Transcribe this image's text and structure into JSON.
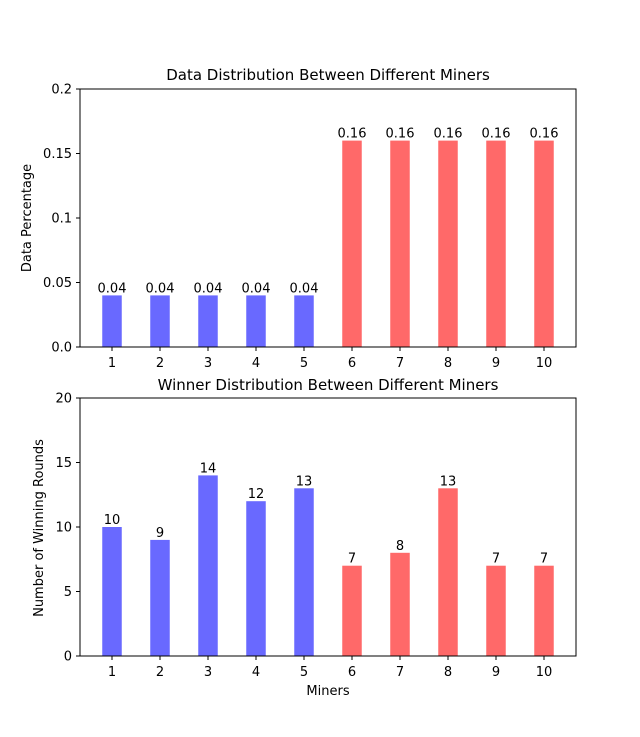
{
  "colors": {
    "group_a": "#6969ff",
    "group_b": "#ff6969"
  },
  "chart_data": [
    {
      "type": "bar",
      "title": "Data Distribution Between Different Miners",
      "xlabel": "",
      "ylabel": "Data Percentage",
      "categories": [
        "1",
        "2",
        "3",
        "4",
        "5",
        "6",
        "7",
        "8",
        "9",
        "10"
      ],
      "values": [
        0.04,
        0.04,
        0.04,
        0.04,
        0.04,
        0.16,
        0.16,
        0.16,
        0.16,
        0.16
      ],
      "value_labels": [
        "0.04",
        "0.04",
        "0.04",
        "0.04",
        "0.04",
        "0.16",
        "0.16",
        "0.16",
        "0.16",
        "0.16"
      ],
      "bar_groups": [
        "a",
        "a",
        "a",
        "a",
        "a",
        "b",
        "b",
        "b",
        "b",
        "b"
      ],
      "ylim": [
        0,
        0.2
      ],
      "yticks": [
        0,
        0.05,
        0.1,
        0.15,
        0.2
      ],
      "ytick_labels": [
        "0.0",
        "0.05",
        "0.1",
        "0.15",
        "0.2"
      ],
      "grid": false
    },
    {
      "type": "bar",
      "title": "Winner Distribution Between Different Miners",
      "xlabel": "Miners",
      "ylabel": "Number of Winning Rounds",
      "categories": [
        "1",
        "2",
        "3",
        "4",
        "5",
        "6",
        "7",
        "8",
        "9",
        "10"
      ],
      "values": [
        10,
        9,
        14,
        12,
        13,
        7,
        8,
        13,
        7,
        7
      ],
      "value_labels": [
        "10",
        "9",
        "14",
        "12",
        "13",
        "7",
        "8",
        "13",
        "7",
        "7"
      ],
      "bar_groups": [
        "a",
        "a",
        "a",
        "a",
        "a",
        "b",
        "b",
        "b",
        "b",
        "b"
      ],
      "ylim": [
        0,
        20
      ],
      "yticks": [
        0,
        5,
        10,
        15,
        20
      ],
      "ytick_labels": [
        "0",
        "5",
        "10",
        "15",
        "20"
      ],
      "grid": false
    }
  ]
}
